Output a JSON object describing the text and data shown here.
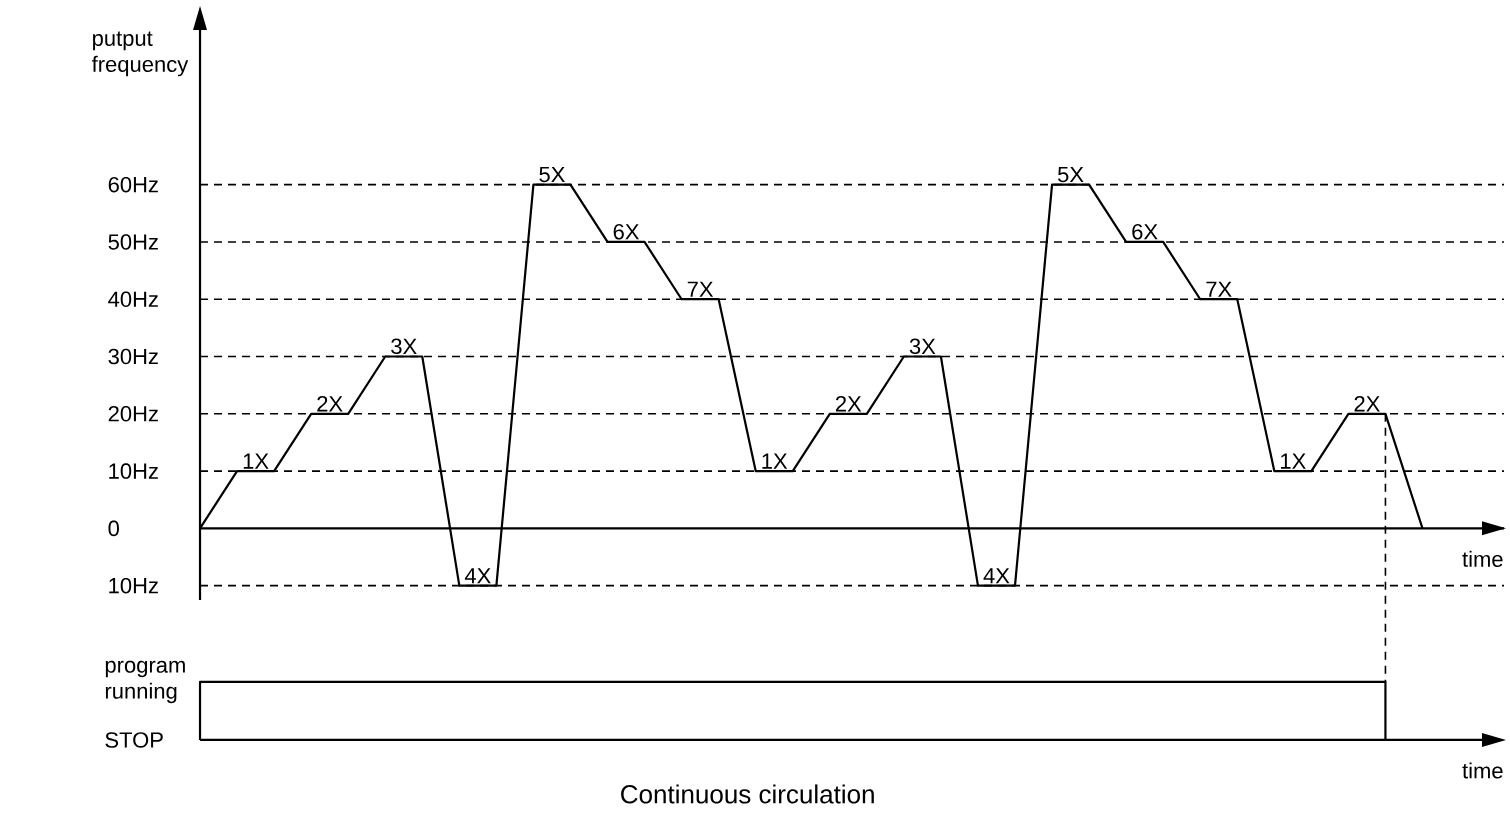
{
  "chart_data": [
    {
      "type": "line",
      "ylabel": "putput frequency",
      "xlabel": "time",
      "tick_labels": "y",
      "marker": "none",
      "color": "#000000",
      "categories": [
        null,
        null,
        null,
        null,
        null,
        null,
        null,
        null,
        null,
        null,
        null,
        null,
        null,
        null,
        null,
        null,
        null,
        null,
        null,
        null,
        null,
        null,
        null,
        null,
        null,
        null,
        null,
        null,
        null,
        null,
        null,
        null,
        null,
        null
      ],
      "values": [
        0,
        10,
        10,
        20,
        20,
        30,
        30,
        -10,
        -10,
        60,
        60,
        50,
        50,
        40,
        40,
        10,
        10,
        20,
        20,
        30,
        30,
        -10,
        -10,
        60,
        60,
        50,
        50,
        40,
        40,
        10,
        10,
        20,
        20,
        0
      ],
      "ylim": [
        -12.5,
        87
      ],
      "yticks": [
        {
          "value": -10,
          "label": "10Hz"
        },
        0,
        {
          "value": 10,
          "label": "10Hz"
        },
        {
          "value": 20,
          "label": "20Hz"
        },
        {
          "value": 30,
          "label": "30Hz"
        },
        {
          "value": 40,
          "label": "40Hz"
        },
        {
          "value": 50,
          "label": "50Hz"
        },
        {
          "value": 60,
          "label": "60Hz"
        }
      ],
      "ref_lines": [
        {
          "axis": "y",
          "value": 60,
          "line_style": "dashed"
        },
        {
          "axis": "y",
          "value": 50,
          "line_style": "dashed"
        },
        {
          "axis": "y",
          "value": 40,
          "line_style": "dashed"
        },
        {
          "axis": "y",
          "value": 30,
          "line_style": "dashed"
        },
        {
          "axis": "y",
          "value": 20,
          "line_style": "dashed"
        },
        {
          "axis": "y",
          "value": 10,
          "line_style": "dashed"
        },
        {
          "axis": "y",
          "value": -10,
          "line_style": "dashed"
        }
      ],
      "annotations": [
        {
          "text": "1X",
          "y": 10
        },
        {
          "text": "2X",
          "y": 20
        },
        {
          "text": "3X",
          "y": 30
        },
        {
          "text": "4X",
          "y": -10
        },
        {
          "text": "5X",
          "y": 60
        },
        {
          "text": "6X",
          "y": 50
        },
        {
          "text": "7X",
          "y": 40
        },
        {
          "text": "1X",
          "y": 10
        },
        {
          "text": "2X",
          "y": 20
        },
        {
          "text": "3X",
          "y": 30
        },
        {
          "text": "4X",
          "y": -10
        },
        {
          "text": "5X",
          "y": 60
        },
        {
          "text": "6X",
          "y": 50
        },
        {
          "text": "7X",
          "y": 40
        },
        {
          "text": "1X",
          "y": 10
        },
        {
          "text": "2X",
          "y": 20
        }
      ]
    },
    {
      "type": "other",
      "xlabel": "time",
      "annotations": [
        "program running",
        "STOP",
        "Continuous circulation"
      ]
    }
  ]
}
